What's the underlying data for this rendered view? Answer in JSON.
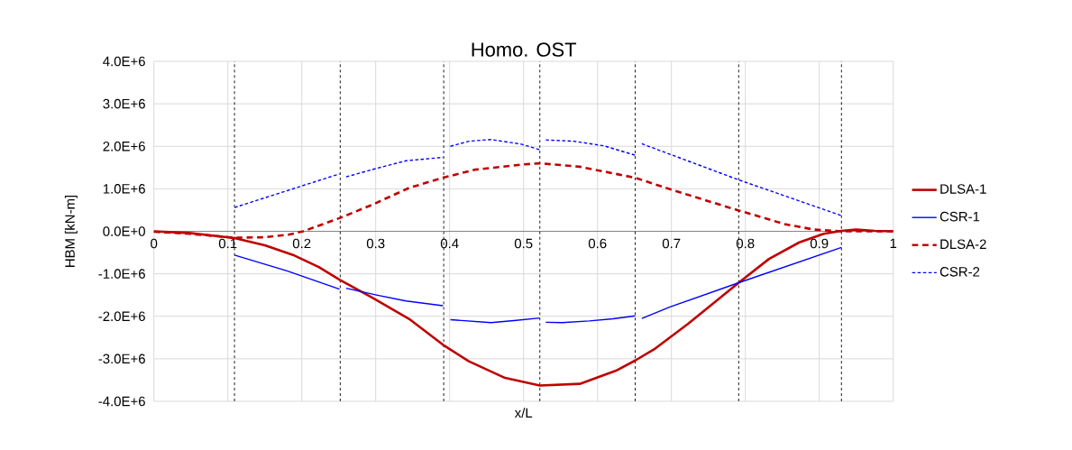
{
  "chart_data": {
    "type": "line",
    "title": "Homo. OST",
    "xlabel": "x/L",
    "ylabel": "HBM [kN-m]",
    "xlim": [
      0,
      1
    ],
    "xticks": [
      0,
      0.1,
      0.2,
      0.3,
      0.4,
      0.5,
      0.6,
      0.7,
      0.8,
      0.9,
      1
    ],
    "ylim": [
      -4000000,
      4000000
    ],
    "yticks": [
      {
        "value": -4000000,
        "label": "-4.0E+6"
      },
      {
        "value": -3000000,
        "label": "-3.0E+6"
      },
      {
        "value": -2000000,
        "label": "-2.0E+6"
      },
      {
        "value": -1000000,
        "label": "-1.0E+6"
      },
      {
        "value": 0,
        "label": "0.0E+0"
      },
      {
        "value": 1000000,
        "label": "1.0E+6"
      },
      {
        "value": 2000000,
        "label": "2.0E+6"
      },
      {
        "value": 3000000,
        "label": "3.0E+6"
      },
      {
        "value": 4000000,
        "label": "4.0E+6"
      }
    ],
    "grid": true,
    "legend": "right",
    "marker": "none",
    "series": [
      {
        "name": "DLSA-1",
        "color": "#c00000",
        "line_style": "solid",
        "x": [
          0,
          0.048,
          0.109,
          0.15,
          0.19,
          0.223,
          0.251,
          0.296,
          0.345,
          0.391,
          0.426,
          0.475,
          0.522,
          0.576,
          0.625,
          0.651,
          0.678,
          0.723,
          0.791,
          0.832,
          0.873,
          0.906,
          0.93,
          0.95,
          0.975,
          1
        ],
        "values": [
          0,
          -40000,
          -160000,
          -330000,
          -570000,
          -840000,
          -1140000,
          -1570000,
          -2060000,
          -2670000,
          -3060000,
          -3450000,
          -3630000,
          -3590000,
          -3280000,
          -3040000,
          -2760000,
          -2170000,
          -1210000,
          -650000,
          -260000,
          -60000,
          10000,
          40000,
          10000,
          0
        ]
      },
      {
        "name": "CSR-1",
        "color": "#0000ff",
        "line_style": "solid",
        "x": [
          0.109,
          0.18,
          0.251,
          0.255,
          0.26,
          0.301,
          0.341,
          0.391,
          0.396,
          0.401,
          0.456,
          0.487,
          0.522,
          0.526,
          0.53,
          0.552,
          0.589,
          0.621,
          0.651,
          0.655,
          0.66,
          0.698,
          0.791,
          0.93
        ],
        "values": [
          -560000,
          -930000,
          -1360000,
          null,
          -1340000,
          -1500000,
          -1640000,
          -1750000,
          null,
          -2080000,
          -2150000,
          -2100000,
          -2040000,
          null,
          -2140000,
          -2150000,
          -2110000,
          -2060000,
          -1990000,
          null,
          -2050000,
          -1780000,
          -1210000,
          -380000
        ]
      },
      {
        "name": "DLSA-2",
        "color": "#c00000",
        "line_style": "dashed",
        "x": [
          0,
          0.048,
          0.109,
          0.15,
          0.182,
          0.202,
          0.251,
          0.296,
          0.345,
          0.391,
          0.434,
          0.497,
          0.522,
          0.576,
          0.651,
          0.698,
          0.791,
          0.853,
          0.893,
          0.93,
          1
        ],
        "values": [
          -10000,
          -60000,
          -150000,
          -140000,
          -80000,
          0,
          310000,
          630000,
          1020000,
          1260000,
          1450000,
          1570000,
          1600000,
          1520000,
          1260000,
          990000,
          490000,
          170000,
          40000,
          0,
          0
        ]
      },
      {
        "name": "CSR-2",
        "color": "#0000ff",
        "line_style": "dashed",
        "x": [
          0.109,
          0.251,
          0.255,
          0.26,
          0.301,
          0.341,
          0.391,
          0.396,
          0.401,
          0.426,
          0.456,
          0.497,
          0.522,
          0.526,
          0.53,
          0.568,
          0.609,
          0.651,
          0.655,
          0.66,
          0.791,
          0.93
        ],
        "values": [
          560000,
          1350000,
          null,
          1280000,
          1480000,
          1660000,
          1740000,
          null,
          2000000,
          2120000,
          2160000,
          2050000,
          1920000,
          null,
          2150000,
          2120000,
          2010000,
          1790000,
          null,
          2060000,
          1210000,
          370000
        ]
      }
    ],
    "ref_lines": [
      {
        "axis": "x",
        "value": 0.109,
        "color": "#000000",
        "line_style": "dashed"
      },
      {
        "axis": "x",
        "value": 0.252,
        "color": "#000000",
        "line_style": "dashed"
      },
      {
        "axis": "x",
        "value": 0.392,
        "color": "#000000",
        "line_style": "dashed"
      },
      {
        "axis": "x",
        "value": 0.522,
        "color": "#000000",
        "line_style": "dashed"
      },
      {
        "axis": "x",
        "value": 0.651,
        "color": "#000000",
        "line_style": "dashed"
      },
      {
        "axis": "x",
        "value": 0.791,
        "color": "#000000",
        "line_style": "dashed"
      },
      {
        "axis": "x",
        "value": 0.93,
        "color": "#000000",
        "line_style": "dashed"
      }
    ]
  }
}
